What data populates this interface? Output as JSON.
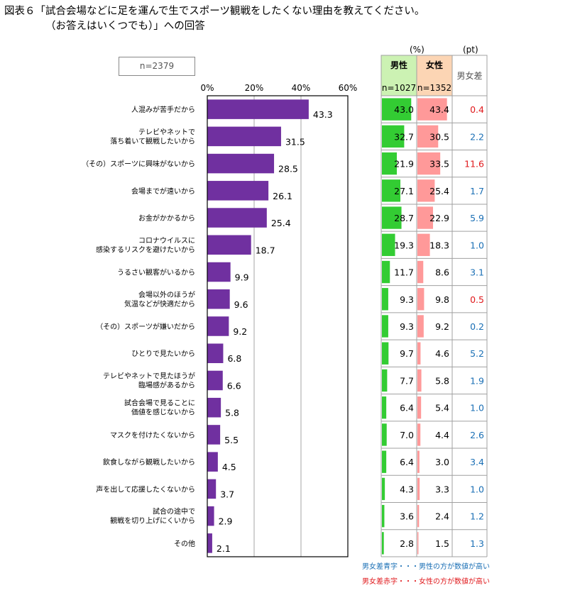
{
  "title_line1": "図表６「試合会場などに足を運んで生でスポーツ観戦をしたくない理由を教えてください。",
  "title_line2": "（お答えはいくつでも）」への回答",
  "sample_size": "n=2379",
  "unit_percent": "(%)",
  "unit_pt": "(pt)",
  "table": {
    "male_header": "男性",
    "male_n": "n=1027",
    "female_header": "女性",
    "female_n": "n=1352",
    "diff_header": "男女差"
  },
  "notes": {
    "blue": "男女差青字・・・男性の方が数値が高い",
    "red": "男女差赤字・・・女性の方が数値が高い"
  },
  "colors": {
    "total_bar": "#7030a0",
    "male_bar": "#33cc33",
    "female_bar": "#ff9999",
    "male_header_bg": "#ccf2b3",
    "female_header_bg": "#fcd5b4",
    "diff_blue": "#1a6fb5",
    "diff_red": "#e0191c"
  },
  "chart_data": {
    "type": "bar",
    "orientation": "horizontal",
    "xlim": [
      0,
      60
    ],
    "ticks": [
      "0%",
      "20%",
      "40%",
      "60%"
    ],
    "categories": [
      [
        "人混みが苦手だから"
      ],
      [
        "テレビやネットで",
        "落ち着いて観戦したいから"
      ],
      [
        "（その）スポーツに興味がないから"
      ],
      [
        "会場までが遠いから"
      ],
      [
        "お金がかかるから"
      ],
      [
        "コロナウイルスに",
        "感染するリスクを避けたいから"
      ],
      [
        "うるさい観客がいるから"
      ],
      [
        "会場以外のほうが",
        "気温などが快適だから"
      ],
      [
        "（その）スポーツが嫌いだから"
      ],
      [
        "ひとりで見たいから"
      ],
      [
        "テレビやネットで見たほうが",
        "臨場感があるから"
      ],
      [
        "試合会場で見ることに",
        "価値を感じないから"
      ],
      [
        "マスクを付けたくないから"
      ],
      [
        "飲食しながら観戦したいから"
      ],
      [
        "声を出して応援したくないから"
      ],
      [
        "試合の途中で",
        "観戦を切り上げにくいから"
      ],
      [
        "その他"
      ]
    ],
    "total": [
      "43.3",
      "31.5",
      "28.5",
      "26.1",
      "25.4",
      "18.7",
      "9.9",
      "9.6",
      "9.2",
      "6.8",
      "6.6",
      "5.8",
      "5.5",
      "4.5",
      "3.7",
      "2.9",
      "2.1"
    ],
    "male": [
      "43.0",
      "32.7",
      "21.9",
      "27.1",
      "28.7",
      "19.3",
      "11.7",
      "9.3",
      "9.3",
      "9.7",
      "7.7",
      "6.4",
      "7.0",
      "6.4",
      "4.3",
      "3.6",
      "2.8"
    ],
    "female": [
      "43.4",
      "30.5",
      "33.5",
      "25.4",
      "22.9",
      "18.3",
      "8.6",
      "9.8",
      "9.2",
      "4.6",
      "5.8",
      "5.4",
      "4.4",
      "3.0",
      "3.3",
      "2.4",
      "1.5"
    ],
    "diff": [
      "0.4",
      "2.2",
      "11.6",
      "1.7",
      "5.9",
      "1.0",
      "3.1",
      "0.5",
      "0.2",
      "5.2",
      "1.9",
      "1.0",
      "2.6",
      "3.4",
      "1.0",
      "1.2",
      "1.3"
    ],
    "diff_side": [
      "female",
      "male",
      "female",
      "male",
      "male",
      "male",
      "male",
      "female",
      "male",
      "male",
      "male",
      "male",
      "male",
      "male",
      "male",
      "male",
      "male"
    ]
  }
}
